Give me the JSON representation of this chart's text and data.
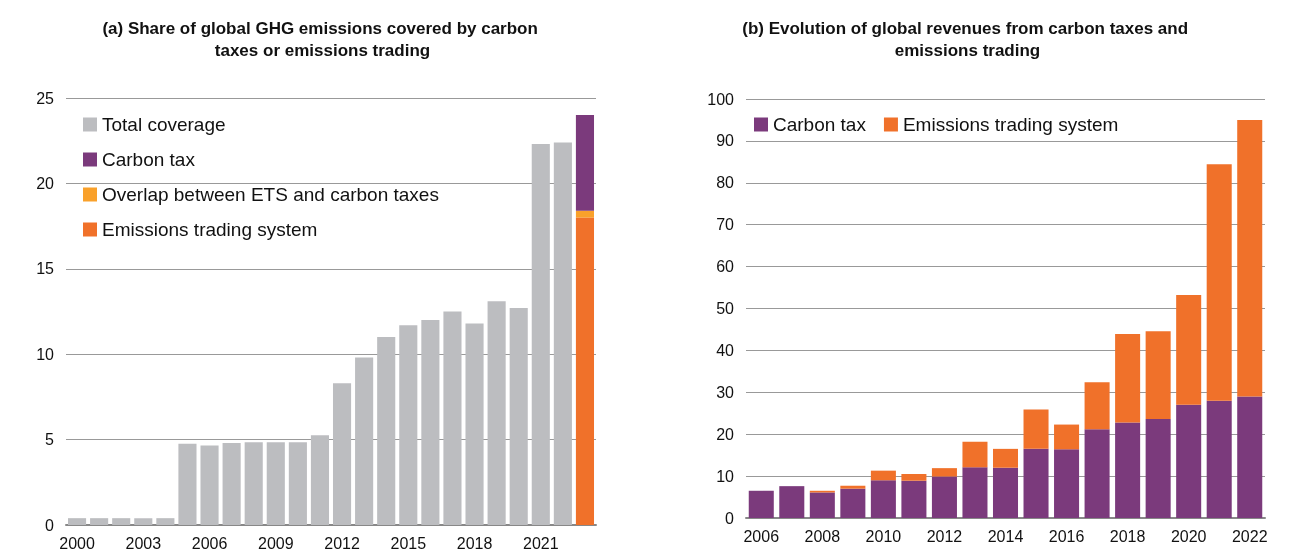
{
  "chart_data": [
    {
      "type": "bar",
      "title": "(a) Share of global GHG emissions covered by carbon taxes or emissions trading",
      "categories": [
        "2000",
        null,
        null,
        "2003",
        null,
        null,
        "2006",
        null,
        null,
        "2009",
        null,
        null,
        "2012",
        null,
        null,
        "2015",
        null,
        null,
        "2018",
        null,
        null,
        "2021",
        null,
        null
      ],
      "stacked": true,
      "series": [
        {
          "name": "Emissions trading system",
          "color": "#f0712a",
          "values": [
            null,
            null,
            null,
            null,
            null,
            null,
            null,
            null,
            null,
            null,
            null,
            null,
            null,
            null,
            null,
            null,
            null,
            null,
            null,
            null,
            null,
            null,
            null,
            18.0
          ]
        },
        {
          "name": "Overlap between ETS and carbon taxes",
          "color": "#f9a12b",
          "values": [
            null,
            null,
            null,
            null,
            null,
            null,
            null,
            null,
            null,
            null,
            null,
            null,
            null,
            null,
            null,
            null,
            null,
            null,
            null,
            null,
            null,
            null,
            null,
            0.4
          ]
        },
        {
          "name": "Carbon tax",
          "color": "#7b3a7c",
          "values": [
            null,
            null,
            null,
            null,
            null,
            null,
            null,
            null,
            null,
            null,
            null,
            null,
            null,
            null,
            null,
            null,
            null,
            null,
            null,
            null,
            null,
            null,
            null,
            5.6
          ]
        },
        {
          "name": "Total coverage",
          "color": "#bcbdc0",
          "values": [
            0.4,
            0.4,
            0.4,
            0.4,
            0.4,
            4.75,
            4.65,
            4.8,
            4.85,
            4.85,
            4.85,
            5.25,
            8.3,
            9.8,
            11.0,
            11.7,
            12.0,
            12.5,
            11.8,
            13.1,
            12.7,
            22.3,
            22.4,
            null
          ]
        }
      ],
      "ylim": [
        0,
        25
      ],
      "yticks": [
        0,
        5,
        10,
        15,
        20,
        25
      ],
      "grid": "y",
      "legend": "top left"
    },
    {
      "type": "bar",
      "title": "(b) Evolution of global revenues from carbon taxes and emissions trading",
      "categories": [
        "2006",
        null,
        "2008",
        null,
        "2010",
        null,
        "2012",
        null,
        "2014",
        null,
        "2016",
        null,
        "2018",
        null,
        "2020",
        null,
        "2022"
      ],
      "stacked": true,
      "series": [
        {
          "name": "Carbon tax",
          "color": "#7b3a7c",
          "values": [
            6.5,
            7.6,
            6.1,
            7.0,
            9.0,
            8.9,
            9.9,
            12.1,
            12.0,
            16.5,
            16.4,
            21.2,
            22.8,
            23.6,
            27.0,
            28.0,
            29.0
          ]
        },
        {
          "name": "Emissions trading system",
          "color": "#f0712a",
          "values": [
            0,
            0,
            0.4,
            0.7,
            2.3,
            1.6,
            2.0,
            6.1,
            4.5,
            9.4,
            5.9,
            11.2,
            21.1,
            21.0,
            26.2,
            56.4,
            66.0
          ]
        }
      ],
      "ylim": [
        0,
        100
      ],
      "yticks": [
        0,
        10,
        20,
        30,
        40,
        50,
        60,
        70,
        80,
        90,
        100
      ],
      "grid": "y",
      "legend": "top"
    }
  ]
}
